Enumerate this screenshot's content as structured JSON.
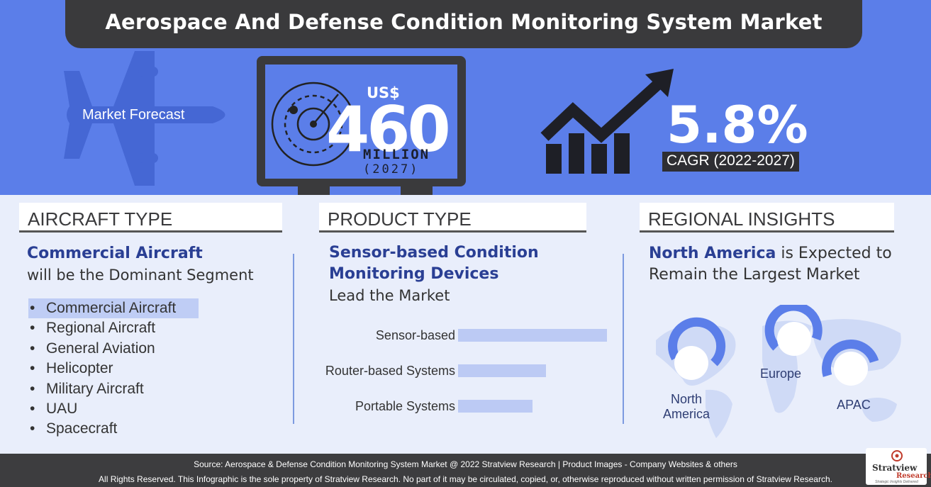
{
  "header": {
    "title": "Aerospace And Defense Condition Monitoring System Market"
  },
  "forecast": {
    "label": "Market Forecast",
    "currency": "US$",
    "value": "460",
    "unit": "MILLION",
    "year": "(2027)"
  },
  "cagr": {
    "value": "5.8%",
    "label": "CAGR (2022-2027)"
  },
  "aircraft_type": {
    "heading": "AIRCRAFT TYPE",
    "lead_strong": "Commercial Aircraft",
    "lead_normal": "will be the Dominant Segment",
    "items": [
      {
        "label": "Commercial Aircraft",
        "selected": true
      },
      {
        "label": "Regional Aircraft",
        "selected": false
      },
      {
        "label": "General Aviation",
        "selected": false
      },
      {
        "label": "Helicopter",
        "selected": false
      },
      {
        "label": "Military Aircraft",
        "selected": false
      },
      {
        "label": "UAU",
        "selected": false
      },
      {
        "label": "Spacecraft",
        "selected": false
      }
    ]
  },
  "product_type": {
    "heading": "PRODUCT TYPE",
    "lead_strong_1": "Sensor-based Condition",
    "lead_strong_2": "Monitoring Devices",
    "lead_normal": "Lead the Market"
  },
  "chart_data": {
    "type": "bar",
    "orientation": "horizontal",
    "categories": [
      "Sensor-based",
      "Router-based Systems",
      "Portable Systems"
    ],
    "values": [
      1.0,
      0.59,
      0.5
    ],
    "color": "#bccaf4"
  },
  "regional": {
    "heading": "REGIONAL INSIGHTS",
    "lead_strong": "North America",
    "lead_normal_1": " is Expected to",
    "lead_normal_2": "Remain the Largest Market",
    "regions": {
      "north_america_1": "North",
      "north_america_2": "America",
      "europe": "Europe",
      "apac": "APAC"
    }
  },
  "footer": {
    "source": "Source: Aerospace & Defense Condition Monitoring System Market @ 2022 Stratview Research  |  Product Images  - Company Websites & others",
    "rights": "All Rights Reserved. This Infographic is the sole property of Stratview Research. No part of it may be circulated, copied, or, otherwise reproduced without written permission of Stratview Research.",
    "logo_name": "Stratview",
    "logo_sub": "Research",
    "logo_tagline": "Strategic Insights Delivered"
  },
  "colors": {
    "band": "#5b7ee9",
    "dark": "#3a3a3c",
    "accent_text": "#2a3f94",
    "bar": "#bccaf4"
  }
}
